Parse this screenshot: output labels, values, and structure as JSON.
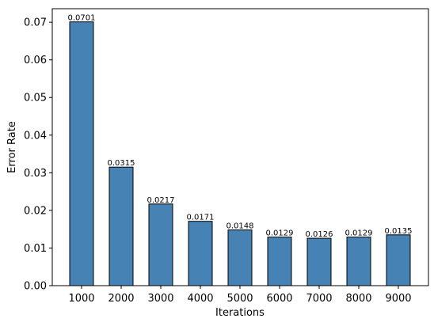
{
  "chart_data": {
    "type": "bar",
    "x": [
      1000,
      2000,
      3000,
      4000,
      5000,
      6000,
      7000,
      8000,
      9000
    ],
    "values": [
      0.0701,
      0.0315,
      0.0217,
      0.0171,
      0.0148,
      0.0129,
      0.0126,
      0.0129,
      0.0135
    ],
    "color": "#4682b4",
    "edgecolor": "#000000",
    "xlabel": "Iterations",
    "ylabel": "Error Rate",
    "xlim": [
      260,
      9760
    ],
    "xticks": [
      1000,
      2000,
      3000,
      4000,
      5000,
      6000,
      7000,
      8000,
      9000
    ],
    "ylim": [
      0,
      0.0736
    ],
    "yticks": [
      {
        "value": 0,
        "label": "0.00"
      },
      0.01,
      0.02,
      0.03,
      0.04,
      0.05,
      0.06,
      0.07
    ],
    "grid": false
  }
}
